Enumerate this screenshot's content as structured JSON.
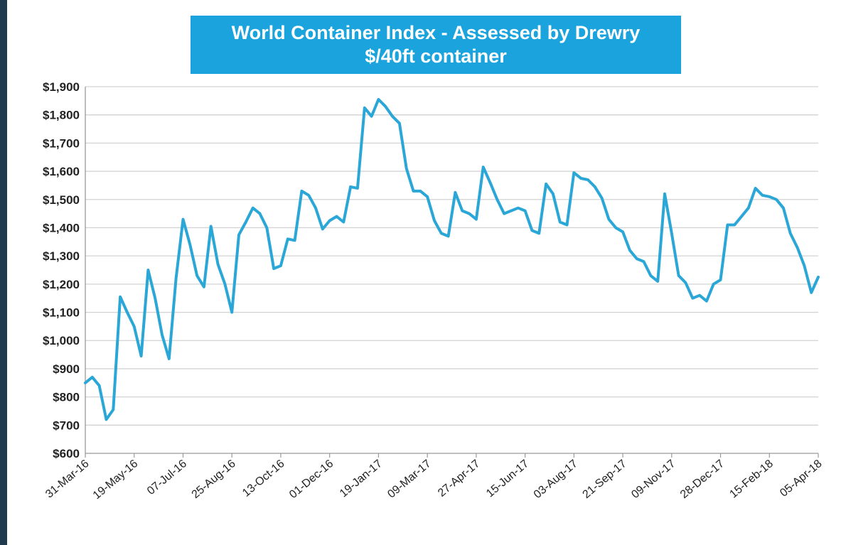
{
  "colors": {
    "line": "#2aa7d6",
    "title_bg": "#1aa3dc",
    "grid": "#d3d3d3"
  },
  "chart_data": {
    "type": "line",
    "title": "World Container Index - Assessed by Drewry",
    "subtitle": "$/40ft container",
    "xlabel": "",
    "ylabel": "",
    "ylim": [
      600,
      1900
    ],
    "yticks": [
      "$600",
      "$700",
      "$800",
      "$900",
      "$1,000",
      "$1,100",
      "$1,200",
      "$1,300",
      "$1,400",
      "$1,500",
      "$1,600",
      "$1,700",
      "$1,800",
      "$1,900"
    ],
    "xticks": [
      "31-Mar-16",
      "19-May-16",
      "07-Jul-16",
      "25-Aug-16",
      "13-Oct-16",
      "01-Dec-16",
      "19-Jan-17",
      "09-Mar-17",
      "27-Apr-17",
      "15-Jun-17",
      "03-Aug-17",
      "21-Sep-17",
      "09-Nov-17",
      "28-Dec-17",
      "15-Feb-18",
      "05-Apr-18"
    ],
    "grid": true,
    "legend": "none",
    "frequency": "weekly",
    "series": [
      {
        "values": [
          850,
          870,
          840,
          720,
          755,
          1155,
          1100,
          1050,
          945,
          1250,
          1150,
          1020,
          935,
          1220,
          1430,
          1340,
          1230,
          1190,
          1405,
          1270,
          1200,
          1100,
          1375,
          1420,
          1470,
          1450,
          1400,
          1255,
          1265,
          1360,
          1355,
          1530,
          1515,
          1470,
          1395,
          1425,
          1440,
          1420,
          1545,
          1540,
          1825,
          1795,
          1855,
          1830,
          1795,
          1770,
          1610,
          1530,
          1530,
          1510,
          1425,
          1380,
          1370,
          1525,
          1460,
          1450,
          1430,
          1615,
          1560,
          1500,
          1450,
          1460,
          1470,
          1460,
          1390,
          1380,
          1555,
          1520,
          1420,
          1410,
          1595,
          1575,
          1570,
          1545,
          1505,
          1430,
          1400,
          1385,
          1320,
          1290,
          1280,
          1230,
          1210,
          1520,
          1380,
          1230,
          1205,
          1150,
          1160,
          1140,
          1200,
          1215,
          1410,
          1410,
          1440,
          1470,
          1540,
          1515,
          1510,
          1500,
          1470,
          1380,
          1330,
          1265,
          1170,
          1225
        ]
      }
    ]
  }
}
